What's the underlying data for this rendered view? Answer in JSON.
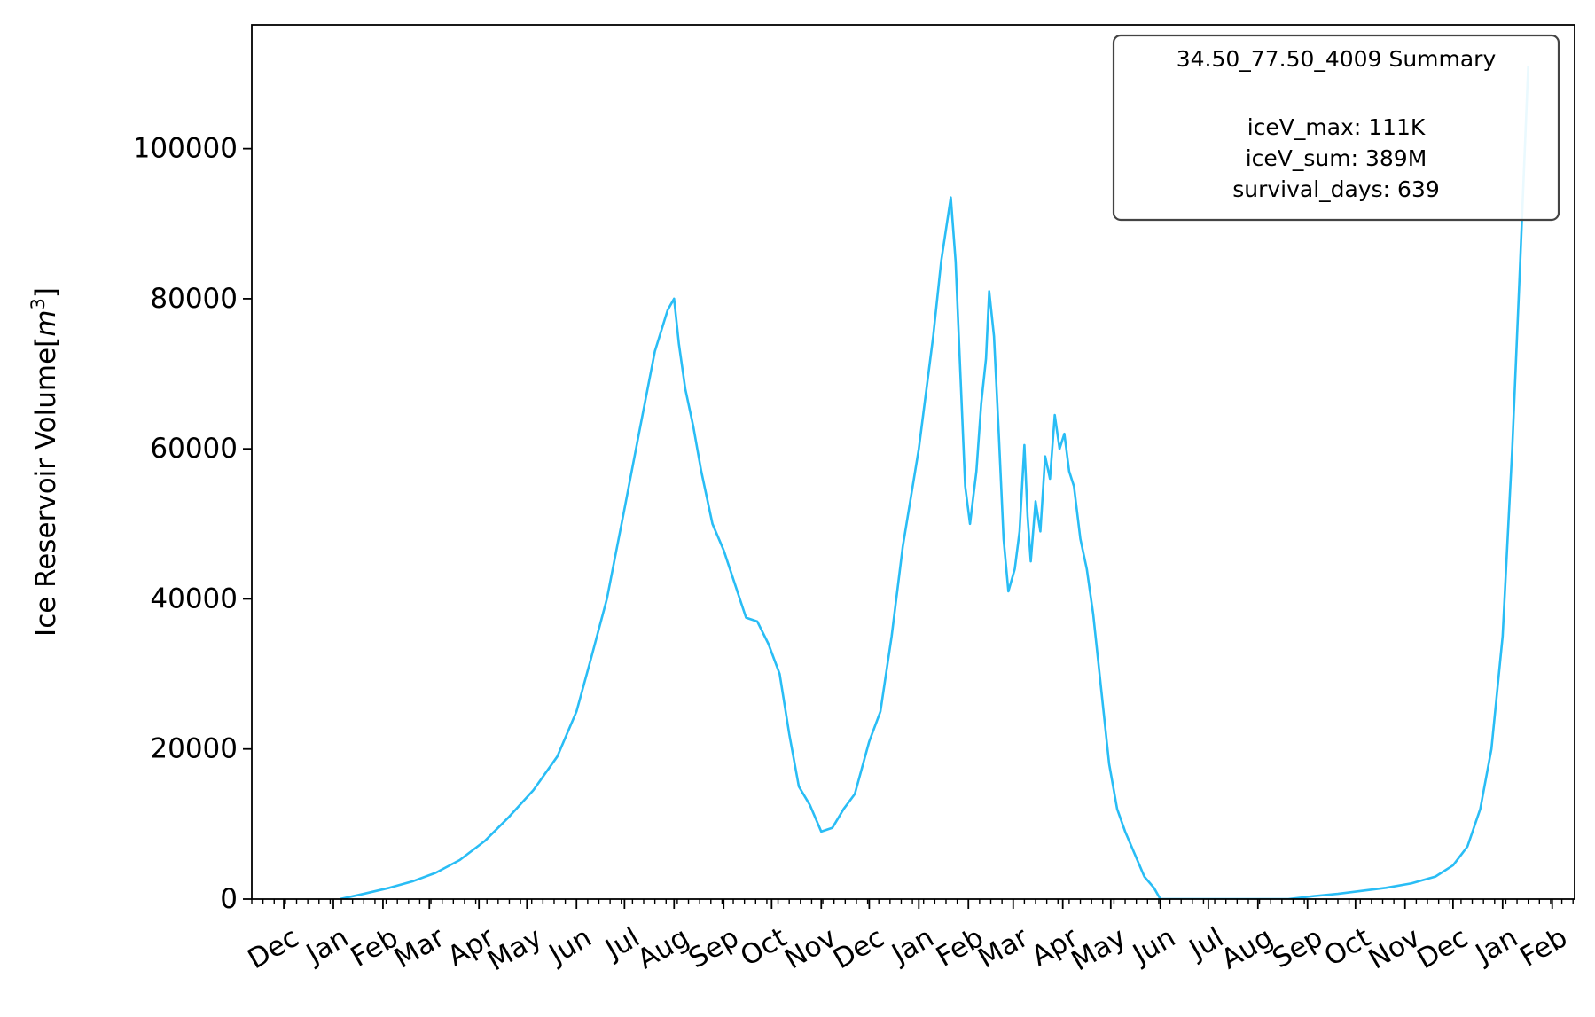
{
  "chart_data": {
    "type": "line",
    "ylabel": "Ice Reservoir Volume",
    "ylabel_unit_base": "m",
    "ylabel_unit_exp": "3",
    "ylim": [
      0,
      116500
    ],
    "yticks": [
      0,
      20000,
      40000,
      60000,
      80000,
      100000
    ],
    "ytick_labels": [
      "0",
      "20000",
      "40000",
      "60000",
      "80000",
      "100000"
    ],
    "xlim": [
      "2019-11-11",
      "2022-02-15"
    ],
    "xtick_labels": [
      {
        "date": "2019-12-01",
        "label": "Dec"
      },
      {
        "date": "2020-01-01",
        "label": "Jan"
      },
      {
        "date": "2020-02-01",
        "label": "Feb"
      },
      {
        "date": "2020-03-01",
        "label": "Mar"
      },
      {
        "date": "2020-04-01",
        "label": "Apr"
      },
      {
        "date": "2020-05-01",
        "label": "May"
      },
      {
        "date": "2020-06-01",
        "label": "Jun"
      },
      {
        "date": "2020-07-01",
        "label": "Jul"
      },
      {
        "date": "2020-08-01",
        "label": "Aug"
      },
      {
        "date": "2020-09-01",
        "label": "Sep"
      },
      {
        "date": "2020-10-01",
        "label": "Oct"
      },
      {
        "date": "2020-11-01",
        "label": "Nov"
      },
      {
        "date": "2020-12-01",
        "label": "Dec"
      },
      {
        "date": "2021-01-01",
        "label": "Jan"
      },
      {
        "date": "2021-02-01",
        "label": "Feb"
      },
      {
        "date": "2021-03-01",
        "label": "Mar"
      },
      {
        "date": "2021-04-01",
        "label": "Apr"
      },
      {
        "date": "2021-05-01",
        "label": "May"
      },
      {
        "date": "2021-06-01",
        "label": "Jun"
      },
      {
        "date": "2021-07-01",
        "label": "Jul"
      },
      {
        "date": "2021-08-01",
        "label": "Aug"
      },
      {
        "date": "2021-09-01",
        "label": "Sep"
      },
      {
        "date": "2021-10-01",
        "label": "Oct"
      },
      {
        "date": "2021-11-01",
        "label": "Nov"
      },
      {
        "date": "2021-12-01",
        "label": "Dec"
      },
      {
        "date": "2022-01-01",
        "label": "Jan"
      },
      {
        "date": "2022-02-01",
        "label": "Feb"
      }
    ],
    "grid": false,
    "legend_position": "top-right",
    "series": [
      {
        "color": "#29bdf5",
        "points": [
          [
            "2020-01-05",
            0
          ],
          [
            "2020-01-20",
            700
          ],
          [
            "2020-02-05",
            1500
          ],
          [
            "2020-02-20",
            2400
          ],
          [
            "2020-03-05",
            3500
          ],
          [
            "2020-03-20",
            5200
          ],
          [
            "2020-04-05",
            7800
          ],
          [
            "2020-04-20",
            11000
          ],
          [
            "2020-05-05",
            14500
          ],
          [
            "2020-05-20",
            19000
          ],
          [
            "2020-06-01",
            25000
          ],
          [
            "2020-06-10",
            32000
          ],
          [
            "2020-06-20",
            40000
          ],
          [
            "2020-07-01",
            52000
          ],
          [
            "2020-07-10",
            62000
          ],
          [
            "2020-07-20",
            73000
          ],
          [
            "2020-07-28",
            78500
          ],
          [
            "2020-08-01",
            80000
          ],
          [
            "2020-08-04",
            74000
          ],
          [
            "2020-08-08",
            68000
          ],
          [
            "2020-08-13",
            63000
          ],
          [
            "2020-08-18",
            57000
          ],
          [
            "2020-08-25",
            50000
          ],
          [
            "2020-09-01",
            46500
          ],
          [
            "2020-09-08",
            42000
          ],
          [
            "2020-09-15",
            37500
          ],
          [
            "2020-09-22",
            37000
          ],
          [
            "2020-09-29",
            34000
          ],
          [
            "2020-10-06",
            30000
          ],
          [
            "2020-10-12",
            22000
          ],
          [
            "2020-10-18",
            15000
          ],
          [
            "2020-10-25",
            12500
          ],
          [
            "2020-11-01",
            9000
          ],
          [
            "2020-11-08",
            9500
          ],
          [
            "2020-11-15",
            12000
          ],
          [
            "2020-11-22",
            14000
          ],
          [
            "2020-12-01",
            21000
          ],
          [
            "2020-12-08",
            25000
          ],
          [
            "2020-12-15",
            35000
          ],
          [
            "2020-12-22",
            47000
          ],
          [
            "2021-01-01",
            60000
          ],
          [
            "2021-01-10",
            75000
          ],
          [
            "2021-01-15",
            85000
          ],
          [
            "2021-01-21",
            93500
          ],
          [
            "2021-01-24",
            85000
          ],
          [
            "2021-01-27",
            70000
          ],
          [
            "2021-01-30",
            55000
          ],
          [
            "2021-02-02",
            50000
          ],
          [
            "2021-02-06",
            57000
          ],
          [
            "2021-02-09",
            66000
          ],
          [
            "2021-02-12",
            72000
          ],
          [
            "2021-02-14",
            81000
          ],
          [
            "2021-02-17",
            75000
          ],
          [
            "2021-02-20",
            62000
          ],
          [
            "2021-02-23",
            48000
          ],
          [
            "2021-02-26",
            41000
          ],
          [
            "2021-03-02",
            44000
          ],
          [
            "2021-03-05",
            49000
          ],
          [
            "2021-03-08",
            60500
          ],
          [
            "2021-03-10",
            51000
          ],
          [
            "2021-03-12",
            45000
          ],
          [
            "2021-03-15",
            53000
          ],
          [
            "2021-03-18",
            49000
          ],
          [
            "2021-03-21",
            59000
          ],
          [
            "2021-03-24",
            56000
          ],
          [
            "2021-03-27",
            64500
          ],
          [
            "2021-03-30",
            60000
          ],
          [
            "2021-04-02",
            62000
          ],
          [
            "2021-04-05",
            57000
          ],
          [
            "2021-04-08",
            55000
          ],
          [
            "2021-04-12",
            48000
          ],
          [
            "2021-04-16",
            44000
          ],
          [
            "2021-04-20",
            38000
          ],
          [
            "2021-04-25",
            28000
          ],
          [
            "2021-04-30",
            18000
          ],
          [
            "2021-05-05",
            12000
          ],
          [
            "2021-05-10",
            9000
          ],
          [
            "2021-05-16",
            6000
          ],
          [
            "2021-05-22",
            3000
          ],
          [
            "2021-05-28",
            1500
          ],
          [
            "2021-06-01",
            0
          ],
          [
            "2021-08-20",
            0
          ],
          [
            "2021-09-05",
            400
          ],
          [
            "2021-09-20",
            700
          ],
          [
            "2021-10-05",
            1100
          ],
          [
            "2021-10-20",
            1500
          ],
          [
            "2021-11-05",
            2100
          ],
          [
            "2021-11-20",
            3000
          ],
          [
            "2021-12-01",
            4500
          ],
          [
            "2021-12-10",
            7000
          ],
          [
            "2021-12-18",
            12000
          ],
          [
            "2021-12-25",
            20000
          ],
          [
            "2022-01-01",
            35000
          ],
          [
            "2022-01-07",
            60000
          ],
          [
            "2022-01-12",
            85000
          ],
          [
            "2022-01-17",
            111000
          ]
        ]
      }
    ],
    "legend_box": {
      "title": "34.50_77.50_4009 Summary",
      "lines": [
        "iceV_max: 111K",
        "iceV_sum: 389M",
        "survival_days: 639"
      ]
    }
  }
}
